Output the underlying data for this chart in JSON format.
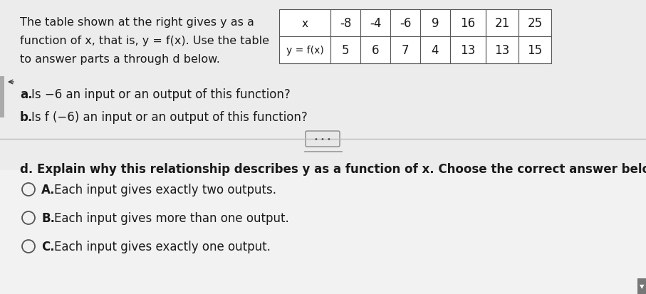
{
  "bg_color": "#e8e8e8",
  "content_bg": "#f0f0f0",
  "white": "#ffffff",
  "table_x_values": [
    "-8",
    "-4",
    "-6",
    "9",
    "16",
    "21",
    "25"
  ],
  "table_y_values": [
    "5",
    "6",
    "7",
    "4",
    "13",
    "13",
    "15"
  ],
  "row_label_x": "x",
  "row_label_y": "y = f(x)",
  "intro_text_line1": "The table shown at the right gives y as a",
  "intro_text_line2": "function of x, that is, y = f(x). Use the table",
  "intro_text_line3": "to answer parts a through d below.",
  "part_a": "a. Is −6 an input or an output of this function?",
  "part_b": "b. Is f (−6) an input or an output of this function?",
  "part_d_label": "d. Explain why this relationship describes y as a function of x. Choose the correct answer below.",
  "option_A_letter": "A.",
  "option_A_text": "  Each input gives exactly two outputs.",
  "option_B_letter": "B.",
  "option_B_text": "  Each input gives more than one output.",
  "option_C_letter": "C.",
  "option_C_text": "  Each input gives exactly one output.",
  "text_color": "#1a1a1a",
  "table_border_color": "#555555",
  "divider_color": "#bbbbbb",
  "dots_color": "#555555",
  "circle_color": "#555555",
  "label_a_bold": true,
  "label_b_bold": true,
  "left_marker_color": "#333333",
  "right_scroll_color": "#777777",
  "scroll_arrow_color": "#333333"
}
